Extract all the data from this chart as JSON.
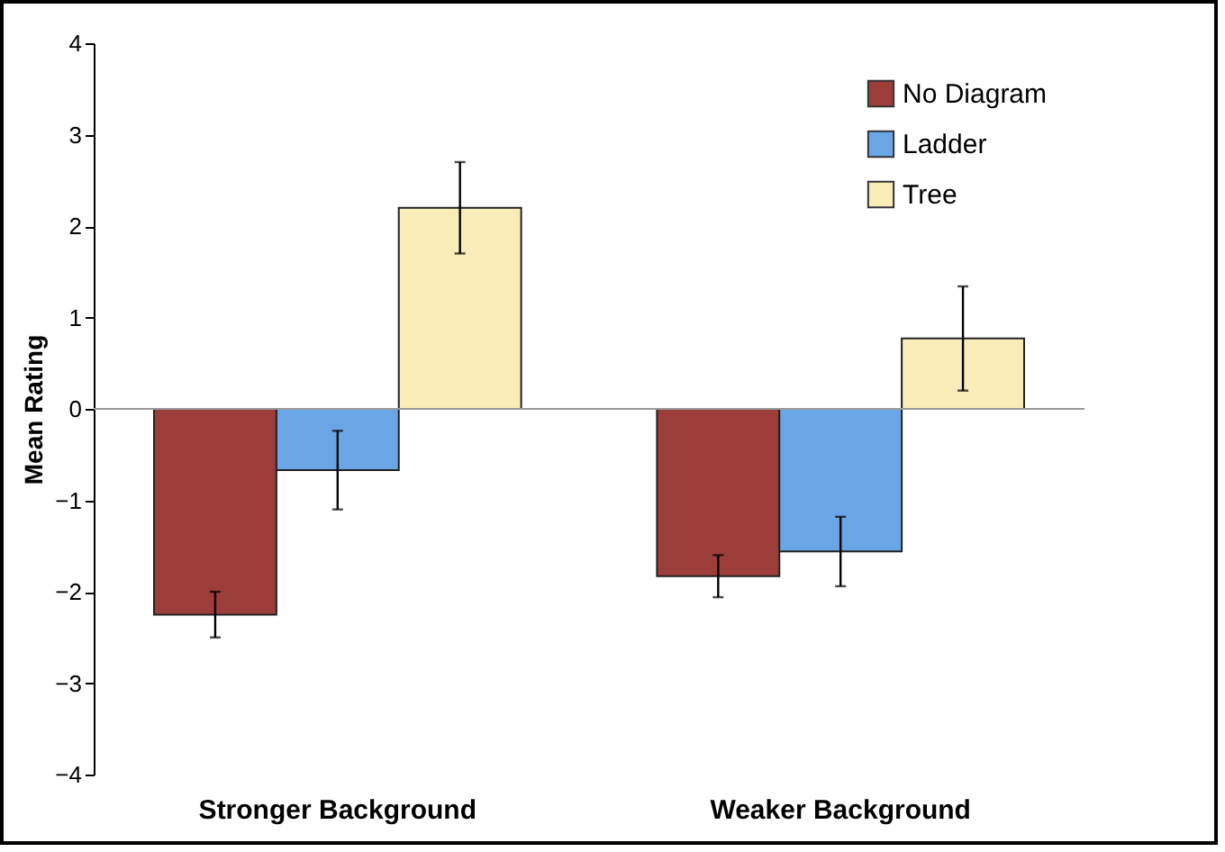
{
  "chart_data": {
    "type": "bar",
    "ylabel": "Mean Rating",
    "categories": [
      "Stronger Background",
      "Weaker Background"
    ],
    "series": [
      {
        "name": "No Diagram",
        "color": "#9c3d3a",
        "values": [
          -2.25,
          -1.83
        ],
        "errors": [
          0.25,
          0.23
        ]
      },
      {
        "name": "Ladder",
        "color": "#6aa6e6",
        "values": [
          -0.67,
          -1.56
        ],
        "errors": [
          0.43,
          0.38
        ]
      },
      {
        "name": "Tree",
        "color": "#f8ecb8",
        "values": [
          2.2,
          0.77
        ],
        "errors": [
          0.5,
          0.57
        ]
      }
    ],
    "ylim": [
      -4,
      4
    ],
    "yticks": [
      -4,
      -3,
      -2,
      -1,
      0,
      1,
      2,
      3,
      4
    ],
    "ref_lines": [
      {
        "axis": "y",
        "value": 0,
        "color": "#999999"
      }
    ],
    "legend": "top right"
  }
}
